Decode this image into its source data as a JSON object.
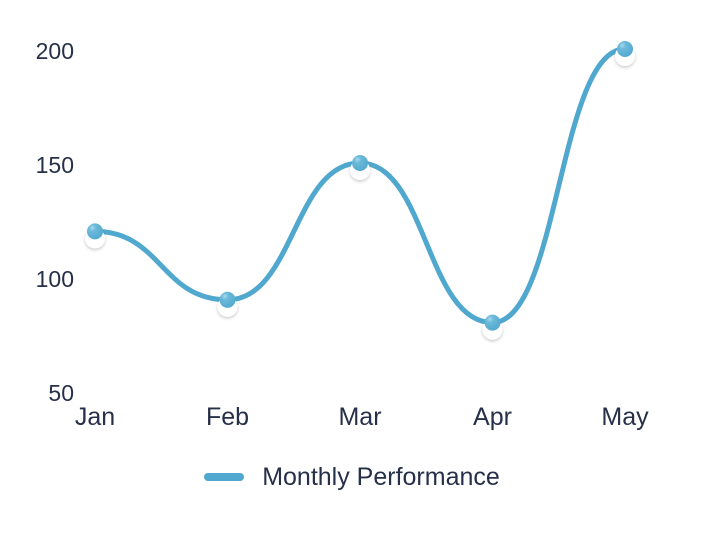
{
  "chart_data": {
    "type": "line",
    "categories": [
      "Jan",
      "Feb",
      "Mar",
      "Apr",
      "May"
    ],
    "series": [
      {
        "name": "Monthly Performance",
        "values": [
          120,
          90,
          150,
          80,
          200
        ]
      }
    ],
    "title": "",
    "xlabel": "",
    "ylabel": "",
    "y_ticks": [
      200,
      150,
      100,
      50
    ],
    "ylim": [
      50,
      200
    ],
    "grid": false,
    "legend_position": "bottom",
    "curve": "smooth-bezier-horizontal-tangents",
    "marker_style": "sphere-with-white-halo",
    "colors": {
      "line": "#50a8ce",
      "marker_ball": "#50a8ce",
      "marker_highlight": "#a5daee",
      "marker_halo": "#ffffff",
      "text": "#273049",
      "background": "#ffffff"
    }
  },
  "legend": {
    "label": "Monthly Performance",
    "swatch_color": "#50a8ce"
  }
}
